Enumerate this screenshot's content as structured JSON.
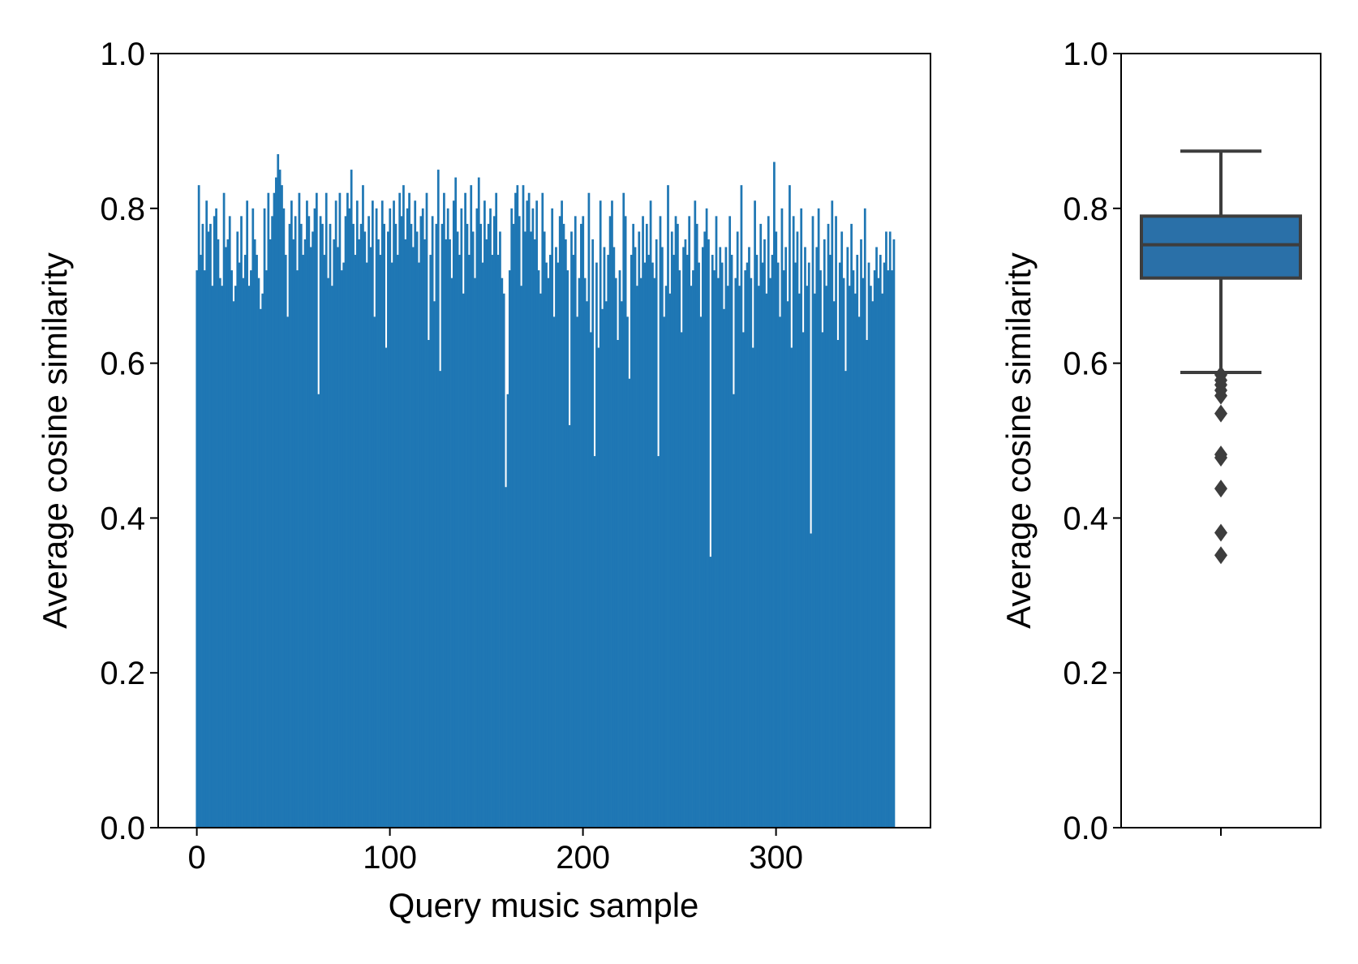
{
  "colors": {
    "bar": "#1f77b4",
    "box": "#2a70a8",
    "box_edge": "#3d3d3d",
    "axis": "#000000"
  },
  "chart_data": [
    {
      "type": "bar",
      "xlabel": "Query music sample",
      "ylabel": "Average cosine similarity",
      "xlim": [
        -20,
        380
      ],
      "ylim": [
        0.0,
        1.0
      ],
      "xticks": [
        0,
        100,
        200,
        300
      ],
      "xtick_labels": [
        "0",
        "100",
        "200",
        "300"
      ],
      "yticks": [
        0.0,
        0.2,
        0.4,
        0.6,
        0.8,
        1.0
      ],
      "ytick_labels": [
        "0.0",
        "0.2",
        "0.4",
        "0.6",
        "0.8",
        "1.0"
      ],
      "grid": false,
      "n_bars": 362,
      "values": [
        0.72,
        0.83,
        0.74,
        0.78,
        0.72,
        0.81,
        0.77,
        0.78,
        0.7,
        0.79,
        0.8,
        0.76,
        0.71,
        0.7,
        0.82,
        0.75,
        0.76,
        0.79,
        0.72,
        0.68,
        0.7,
        0.77,
        0.73,
        0.79,
        0.71,
        0.74,
        0.81,
        0.7,
        0.72,
        0.8,
        0.76,
        0.74,
        0.71,
        0.67,
        0.69,
        0.8,
        0.72,
        0.82,
        0.76,
        0.79,
        0.82,
        0.84,
        0.87,
        0.85,
        0.83,
        0.8,
        0.74,
        0.66,
        0.78,
        0.81,
        0.76,
        0.79,
        0.72,
        0.82,
        0.78,
        0.74,
        0.76,
        0.81,
        0.79,
        0.75,
        0.77,
        0.8,
        0.82,
        0.56,
        0.79,
        0.78,
        0.74,
        0.82,
        0.71,
        0.78,
        0.7,
        0.76,
        0.81,
        0.75,
        0.82,
        0.72,
        0.73,
        0.79,
        0.82,
        0.8,
        0.85,
        0.78,
        0.74,
        0.81,
        0.76,
        0.78,
        0.83,
        0.77,
        0.73,
        0.79,
        0.75,
        0.81,
        0.66,
        0.8,
        0.76,
        0.74,
        0.81,
        0.78,
        0.62,
        0.77,
        0.8,
        0.73,
        0.81,
        0.78,
        0.74,
        0.82,
        0.79,
        0.83,
        0.76,
        0.8,
        0.82,
        0.78,
        0.75,
        0.81,
        0.77,
        0.73,
        0.79,
        0.8,
        0.76,
        0.82,
        0.63,
        0.74,
        0.79,
        0.68,
        0.78,
        0.85,
        0.59,
        0.78,
        0.82,
        0.76,
        0.8,
        0.76,
        0.71,
        0.81,
        0.84,
        0.77,
        0.74,
        0.8,
        0.69,
        0.82,
        0.78,
        0.74,
        0.83,
        0.77,
        0.71,
        0.8,
        0.84,
        0.78,
        0.73,
        0.81,
        0.76,
        0.78,
        0.8,
        0.74,
        0.79,
        0.82,
        0.74,
        0.77,
        0.71,
        0.69,
        0.44,
        0.56,
        0.72,
        0.8,
        0.78,
        0.82,
        0.83,
        0.79,
        0.7,
        0.83,
        0.77,
        0.81,
        0.82,
        0.77,
        0.8,
        0.76,
        0.81,
        0.72,
        0.69,
        0.82,
        0.77,
        0.73,
        0.71,
        0.74,
        0.8,
        0.66,
        0.75,
        0.73,
        0.79,
        0.81,
        0.78,
        0.76,
        0.72,
        0.52,
        0.77,
        0.74,
        0.79,
        0.66,
        0.71,
        0.78,
        0.79,
        0.71,
        0.68,
        0.82,
        0.64,
        0.76,
        0.48,
        0.73,
        0.62,
        0.81,
        0.67,
        0.75,
        0.68,
        0.74,
        0.79,
        0.81,
        0.75,
        0.71,
        0.63,
        0.72,
        0.68,
        0.82,
        0.79,
        0.66,
        0.58,
        0.74,
        0.78,
        0.75,
        0.7,
        0.77,
        0.71,
        0.79,
        0.73,
        0.78,
        0.74,
        0.81,
        0.73,
        0.71,
        0.76,
        0.48,
        0.79,
        0.75,
        0.66,
        0.7,
        0.83,
        0.69,
        0.77,
        0.74,
        0.79,
        0.78,
        0.72,
        0.64,
        0.75,
        0.76,
        0.74,
        0.79,
        0.7,
        0.72,
        0.81,
        0.78,
        0.73,
        0.66,
        0.75,
        0.77,
        0.8,
        0.76,
        0.35,
        0.74,
        0.72,
        0.79,
        0.71,
        0.75,
        0.73,
        0.67,
        0.75,
        0.7,
        0.79,
        0.74,
        0.56,
        0.71,
        0.77,
        0.7,
        0.83,
        0.64,
        0.72,
        0.73,
        0.75,
        0.71,
        0.62,
        0.81,
        0.74,
        0.7,
        0.78,
        0.73,
        0.76,
        0.69,
        0.79,
        0.71,
        0.74,
        0.86,
        0.77,
        0.73,
        0.66,
        0.8,
        0.72,
        0.75,
        0.68,
        0.83,
        0.62,
        0.79,
        0.73,
        0.77,
        0.69,
        0.8,
        0.64,
        0.75,
        0.7,
        0.73,
        0.38,
        0.79,
        0.69,
        0.75,
        0.8,
        0.72,
        0.64,
        0.76,
        0.7,
        0.78,
        0.74,
        0.81,
        0.68,
        0.79,
        0.63,
        0.73,
        0.77,
        0.71,
        0.59,
        0.75,
        0.7,
        0.78,
        0.72,
        0.69,
        0.74,
        0.66,
        0.76,
        0.71,
        0.8,
        0.63,
        0.73,
        0.7,
        0.68,
        0.72,
        0.75,
        0.71,
        0.74,
        0.69,
        0.73,
        0.77,
        0.72,
        0.77,
        0.72,
        0.76
      ]
    },
    {
      "type": "box",
      "ylabel": "Average cosine similarity",
      "ylim": [
        0.0,
        1.0
      ],
      "yticks": [
        0.0,
        0.2,
        0.4,
        0.6,
        0.8,
        1.0
      ],
      "ytick_labels": [
        "0.0",
        "0.2",
        "0.4",
        "0.6",
        "0.8",
        "1.0"
      ],
      "grid": false,
      "whisker_low": 0.588,
      "q1": 0.71,
      "median": 0.753,
      "q3": 0.79,
      "whisker_high": 0.874,
      "outliers": [
        0.585,
        0.578,
        0.572,
        0.565,
        0.558,
        0.535,
        0.482,
        0.478,
        0.438,
        0.381,
        0.352
      ]
    }
  ]
}
